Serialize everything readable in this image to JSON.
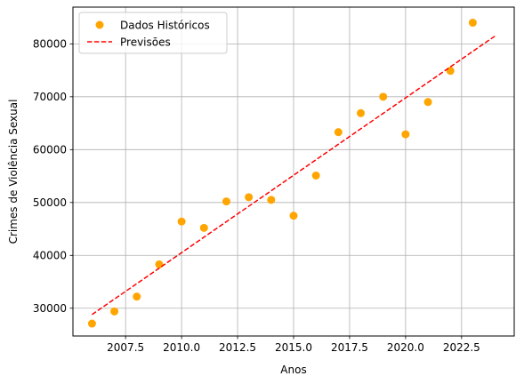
{
  "chart_data": {
    "type": "scatter",
    "title": "",
    "xlabel": "Anos",
    "ylabel": "Crimes de Violência Sexual",
    "xlim": [
      2005.15,
      2024.85
    ],
    "ylim": [
      24750,
      86950
    ],
    "grid": true,
    "legend_position": "top-left",
    "x_ticks": [
      2007.5,
      2010.0,
      2012.5,
      2015.0,
      2017.5,
      2020.0,
      2022.5
    ],
    "x_tick_labels": [
      "2007.5",
      "2010.0",
      "2012.5",
      "2015.0",
      "2017.5",
      "2020.0",
      "2022.5"
    ],
    "y_ticks": [
      30000,
      40000,
      50000,
      60000,
      70000,
      80000
    ],
    "y_tick_labels": [
      "30000",
      "40000",
      "50000",
      "60000",
      "70000",
      "80000"
    ],
    "series": [
      {
        "name": "Dados Históricos",
        "kind": "scatter",
        "color": "#FFA500",
        "points": [
          {
            "x": 2006,
            "y": 27100
          },
          {
            "x": 2007,
            "y": 29400
          },
          {
            "x": 2008,
            "y": 32200
          },
          {
            "x": 2009,
            "y": 38300
          },
          {
            "x": 2010,
            "y": 46400
          },
          {
            "x": 2011,
            "y": 45200
          },
          {
            "x": 2012,
            "y": 50200
          },
          {
            "x": 2013,
            "y": 51000
          },
          {
            "x": 2014,
            "y": 50500
          },
          {
            "x": 2015,
            "y": 47500
          },
          {
            "x": 2016,
            "y": 55100
          },
          {
            "x": 2017,
            "y": 63300
          },
          {
            "x": 2018,
            "y": 66900
          },
          {
            "x": 2019,
            "y": 70000
          },
          {
            "x": 2020,
            "y": 62900
          },
          {
            "x": 2021,
            "y": 69000
          },
          {
            "x": 2022,
            "y": 74900
          },
          {
            "x": 2023,
            "y": 84000
          }
        ]
      },
      {
        "name": "Previsões",
        "kind": "line",
        "style": "dashed",
        "color": "#FF0000",
        "points": [
          {
            "x": 2006,
            "y": 28800
          },
          {
            "x": 2024,
            "y": 81500
          }
        ]
      }
    ]
  }
}
